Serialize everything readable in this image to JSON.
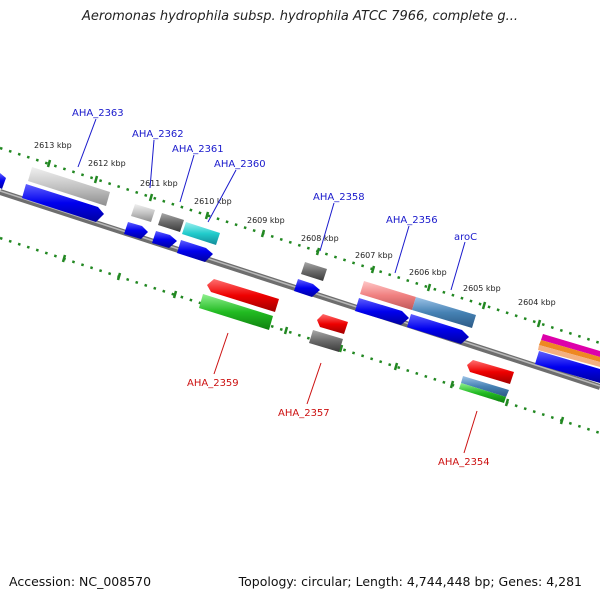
{
  "title": "Aeromonas hydrophila subsp. hydrophila ATCC 7966, complete g...",
  "footer": {
    "accession": "Accession: NC_008570",
    "topology": "Topology: circular; Length: 4,744,448 bp; Genes: 4,281"
  },
  "scale_labels": [
    "2613 kbp",
    "2612 kbp",
    "2611 kbp",
    "2610 kbp",
    "2609 kbp",
    "2608 kbp",
    "2607 kbp",
    "2606 kbp",
    "2605 kbp",
    "2604 kbp"
  ],
  "forward_gene_labels": [
    "AHA_2363",
    "AHA_2362",
    "AHA_2361",
    "AHA_2360",
    "AHA_2358",
    "AHA_2356",
    "aroC"
  ],
  "reverse_gene_labels": [
    "AHA_2359",
    "AHA_2357",
    "AHA_2354"
  ],
  "colors": {
    "backbone": "#808080",
    "cds": "#0000ee",
    "label_forward": "#1a1acc",
    "label_reverse": "#cc1111",
    "dots": "#228822"
  }
}
